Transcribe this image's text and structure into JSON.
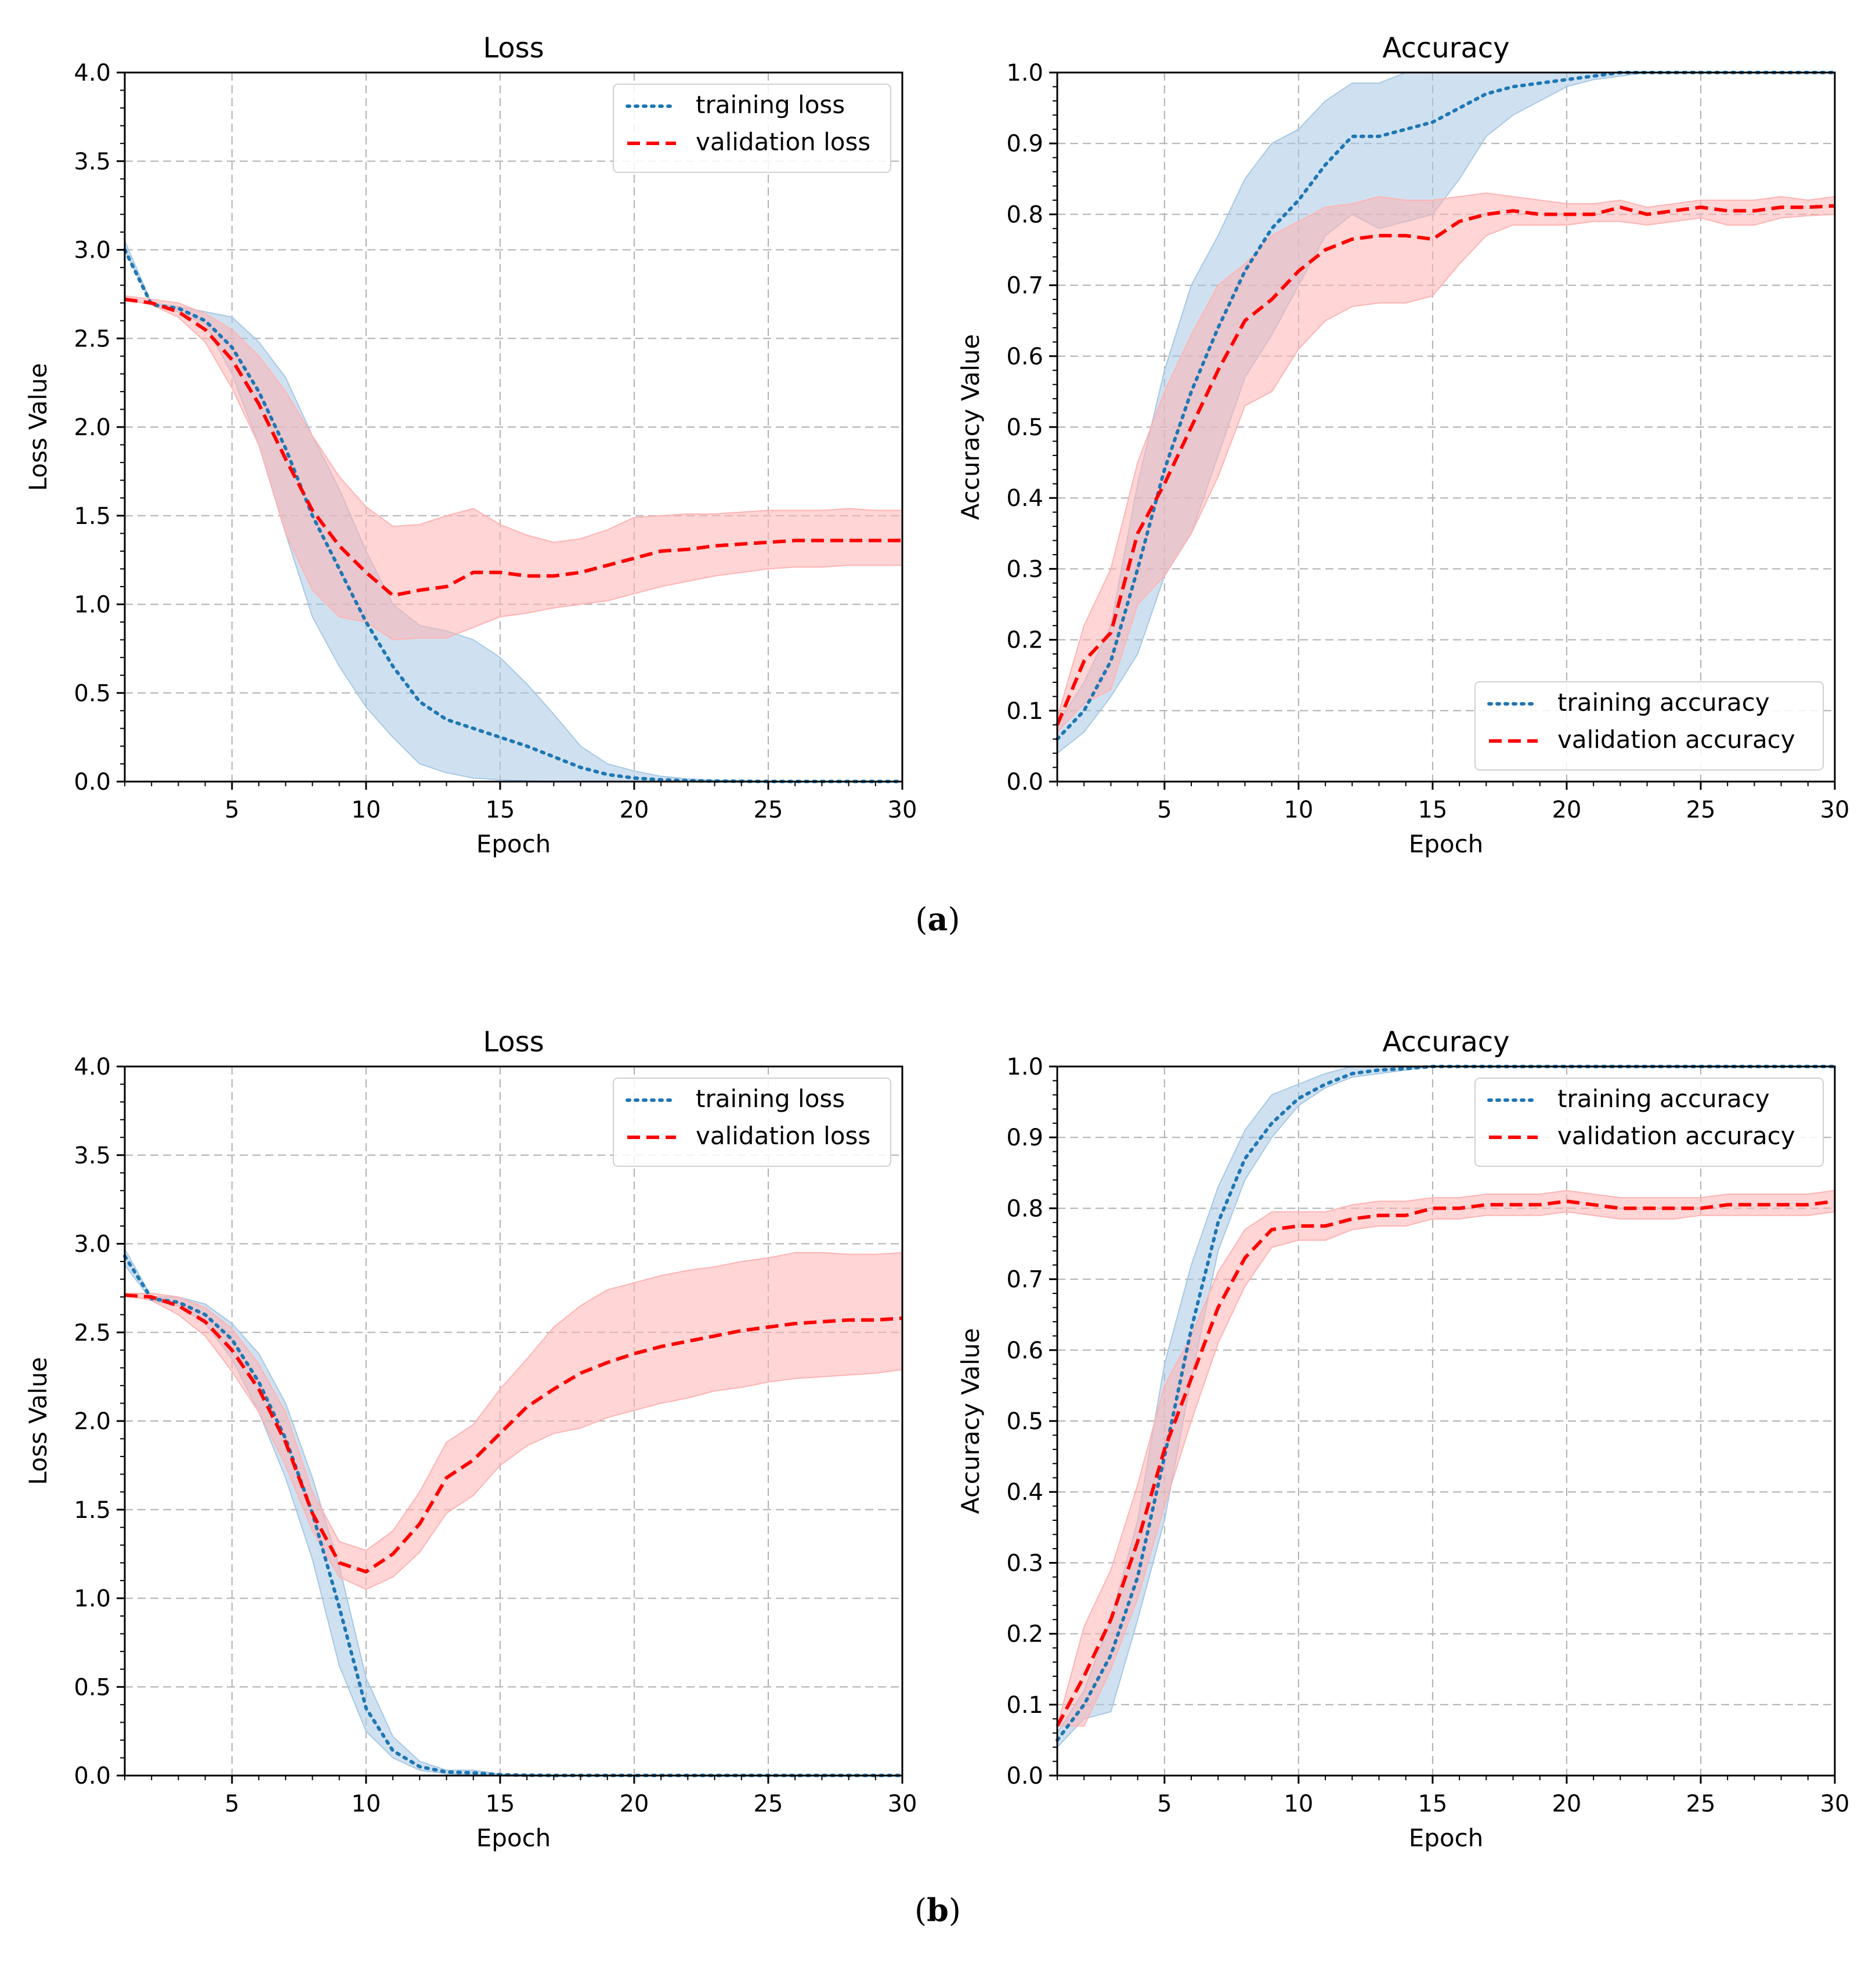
{
  "figure_labels": {
    "a": "a",
    "b": "b"
  },
  "chart_data": [
    {
      "id": "a-loss",
      "type": "line",
      "title": "Loss",
      "xlabel": "Epoch",
      "ylabel": "Loss Value",
      "xlim": [
        1,
        30
      ],
      "ylim": [
        0,
        4.0
      ],
      "xticks": [
        5,
        10,
        15,
        20,
        25,
        30
      ],
      "yticks": [
        0.0,
        0.5,
        1.0,
        1.5,
        2.0,
        2.5,
        3.0,
        3.5,
        4.0
      ],
      "ytick_labels": [
        "0.0",
        "0.5",
        "1.0",
        "1.5",
        "2.0",
        "2.5",
        "3.0",
        "3.5",
        "4.0"
      ],
      "grid": true,
      "legend_position": "upper-right",
      "x": [
        1,
        2,
        3,
        4,
        5,
        6,
        7,
        8,
        9,
        10,
        11,
        12,
        13,
        14,
        15,
        16,
        17,
        18,
        19,
        20,
        21,
        22,
        23,
        24,
        25,
        26,
        27,
        28,
        29,
        30
      ],
      "series": [
        {
          "name": "training loss",
          "style": "dotted",
          "color": "#1f77b4",
          "band_color": "#a7c8e4",
          "values": [
            3.0,
            2.69,
            2.67,
            2.6,
            2.45,
            2.2,
            1.88,
            1.5,
            1.2,
            0.9,
            0.65,
            0.45,
            0.35,
            0.3,
            0.25,
            0.2,
            0.14,
            0.08,
            0.04,
            0.02,
            0.01,
            0.005,
            0.003,
            0.002,
            0.001,
            0.001,
            0.001,
            0.001,
            0.001,
            0.001
          ],
          "lower": [
            3.0,
            2.69,
            2.65,
            2.58,
            2.3,
            1.9,
            1.4,
            0.93,
            0.65,
            0.42,
            0.25,
            0.1,
            0.05,
            0.02,
            0.01,
            0.005,
            0,
            0,
            0,
            0,
            0,
            0,
            0,
            0,
            0,
            0,
            0,
            0,
            0,
            0
          ],
          "upper": [
            3.05,
            2.7,
            2.68,
            2.65,
            2.62,
            2.48,
            2.28,
            1.95,
            1.65,
            1.3,
            1.0,
            0.88,
            0.85,
            0.8,
            0.7,
            0.55,
            0.38,
            0.2,
            0.1,
            0.06,
            0.03,
            0.015,
            0.008,
            0.004,
            0.002,
            0.001,
            0.001,
            0.001,
            0.001,
            0.001
          ]
        },
        {
          "name": "validation loss",
          "style": "dashed",
          "color": "#ff0000",
          "band_color": "#ffb3b3",
          "values": [
            2.72,
            2.7,
            2.65,
            2.55,
            2.38,
            2.13,
            1.82,
            1.53,
            1.33,
            1.18,
            1.05,
            1.08,
            1.1,
            1.18,
            1.18,
            1.16,
            1.16,
            1.18,
            1.22,
            1.26,
            1.3,
            1.31,
            1.33,
            1.34,
            1.35,
            1.36,
            1.36,
            1.36,
            1.36,
            1.36
          ],
          "lower": [
            2.72,
            2.69,
            2.62,
            2.48,
            2.22,
            1.9,
            1.4,
            1.08,
            0.93,
            0.9,
            0.8,
            0.81,
            0.81,
            0.87,
            0.93,
            0.95,
            0.98,
            1.0,
            1.02,
            1.06,
            1.1,
            1.13,
            1.16,
            1.18,
            1.2,
            1.21,
            1.21,
            1.22,
            1.22,
            1.22
          ],
          "upper": [
            2.74,
            2.72,
            2.7,
            2.64,
            2.55,
            2.4,
            2.2,
            1.95,
            1.72,
            1.55,
            1.44,
            1.45,
            1.5,
            1.54,
            1.45,
            1.39,
            1.35,
            1.37,
            1.42,
            1.49,
            1.5,
            1.51,
            1.51,
            1.52,
            1.53,
            1.53,
            1.53,
            1.54,
            1.53,
            1.53
          ]
        }
      ]
    },
    {
      "id": "a-acc",
      "type": "line",
      "title": "Accuracy",
      "xlabel": "Epoch",
      "ylabel": "Accuracy Value",
      "xlim": [
        1,
        30
      ],
      "ylim": [
        0,
        1.0
      ],
      "xticks": [
        5,
        10,
        15,
        20,
        25,
        30
      ],
      "yticks": [
        0.0,
        0.1,
        0.2,
        0.3,
        0.4,
        0.5,
        0.6,
        0.7,
        0.8,
        0.9,
        1.0
      ],
      "ytick_labels": [
        "0.0",
        "0.1",
        "0.2",
        "0.3",
        "0.4",
        "0.5",
        "0.6",
        "0.7",
        "0.8",
        "0.9",
        "1.0"
      ],
      "grid": true,
      "legend_position": "lower-right",
      "x": [
        1,
        2,
        3,
        4,
        5,
        6,
        7,
        8,
        9,
        10,
        11,
        12,
        13,
        14,
        15,
        16,
        17,
        18,
        19,
        20,
        21,
        22,
        23,
        24,
        25,
        26,
        27,
        28,
        29,
        30
      ],
      "series": [
        {
          "name": "training accuracy",
          "style": "dotted",
          "color": "#1f77b4",
          "band_color": "#a7c8e4",
          "values": [
            0.06,
            0.1,
            0.17,
            0.3,
            0.44,
            0.55,
            0.64,
            0.72,
            0.78,
            0.82,
            0.87,
            0.91,
            0.91,
            0.92,
            0.93,
            0.95,
            0.97,
            0.98,
            0.985,
            0.99,
            0.995,
            1.0,
            1.0,
            1.0,
            1.0,
            1.0,
            1.0,
            1.0,
            1.0,
            1.0
          ],
          "lower": [
            0.04,
            0.07,
            0.12,
            0.18,
            0.29,
            0.35,
            0.46,
            0.57,
            0.63,
            0.7,
            0.77,
            0.8,
            0.78,
            0.79,
            0.8,
            0.85,
            0.91,
            0.94,
            0.96,
            0.98,
            0.99,
            0.995,
            1.0,
            1.0,
            1.0,
            1.0,
            1.0,
            1.0,
            1.0,
            1.0
          ],
          "upper": [
            0.08,
            0.14,
            0.22,
            0.42,
            0.58,
            0.7,
            0.77,
            0.85,
            0.9,
            0.92,
            0.96,
            0.985,
            0.985,
            1.0,
            1.0,
            1.0,
            1.0,
            1.0,
            1.0,
            1.0,
            1.0,
            1.0,
            1.0,
            1.0,
            1.0,
            1.0,
            1.0,
            1.0,
            1.0,
            1.0
          ]
        },
        {
          "name": "validation accuracy",
          "style": "dashed",
          "color": "#ff0000",
          "band_color": "#ffb3b3",
          "values": [
            0.08,
            0.17,
            0.21,
            0.35,
            0.42,
            0.5,
            0.58,
            0.65,
            0.68,
            0.72,
            0.75,
            0.765,
            0.77,
            0.77,
            0.765,
            0.79,
            0.8,
            0.805,
            0.8,
            0.8,
            0.8,
            0.81,
            0.8,
            0.805,
            0.81,
            0.805,
            0.805,
            0.81,
            0.81,
            0.812
          ],
          "lower": [
            0.07,
            0.11,
            0.13,
            0.25,
            0.29,
            0.35,
            0.43,
            0.53,
            0.55,
            0.61,
            0.65,
            0.67,
            0.675,
            0.675,
            0.685,
            0.73,
            0.77,
            0.785,
            0.785,
            0.785,
            0.79,
            0.79,
            0.785,
            0.79,
            0.795,
            0.785,
            0.785,
            0.795,
            0.798,
            0.8
          ],
          "upper": [
            0.09,
            0.22,
            0.3,
            0.45,
            0.55,
            0.63,
            0.7,
            0.73,
            0.77,
            0.79,
            0.81,
            0.815,
            0.825,
            0.82,
            0.82,
            0.825,
            0.83,
            0.825,
            0.82,
            0.815,
            0.815,
            0.82,
            0.81,
            0.815,
            0.82,
            0.82,
            0.82,
            0.825,
            0.82,
            0.825
          ]
        }
      ]
    },
    {
      "id": "b-loss",
      "type": "line",
      "title": "Loss",
      "xlabel": "Epoch",
      "ylabel": "Loss Value",
      "xlim": [
        1,
        30
      ],
      "ylim": [
        0,
        4.0
      ],
      "xticks": [
        5,
        10,
        15,
        20,
        25,
        30
      ],
      "yticks": [
        0.0,
        0.5,
        1.0,
        1.5,
        2.0,
        2.5,
        3.0,
        3.5,
        4.0
      ],
      "ytick_labels": [
        "0.0",
        "0.5",
        "1.0",
        "1.5",
        "2.0",
        "2.5",
        "3.0",
        "3.5",
        "4.0"
      ],
      "grid": true,
      "legend_position": "upper-right",
      "x": [
        1,
        2,
        3,
        4,
        5,
        6,
        7,
        8,
        9,
        10,
        11,
        12,
        13,
        14,
        15,
        16,
        17,
        18,
        19,
        20,
        21,
        22,
        23,
        24,
        25,
        26,
        27,
        28,
        29,
        30
      ],
      "series": [
        {
          "name": "training loss",
          "style": "dotted",
          "color": "#1f77b4",
          "band_color": "#a7c8e4",
          "values": [
            2.93,
            2.69,
            2.67,
            2.6,
            2.46,
            2.22,
            1.9,
            1.48,
            0.95,
            0.38,
            0.14,
            0.05,
            0.02,
            0.015,
            0.005,
            0.002,
            0.001,
            0.001,
            0.001,
            0.001,
            0.001,
            0.001,
            0.001,
            0.001,
            0.001,
            0.001,
            0.001,
            0.001,
            0.001,
            0.001
          ],
          "lower": [
            2.88,
            2.68,
            2.65,
            2.55,
            2.35,
            2.05,
            1.68,
            1.22,
            0.62,
            0.25,
            0.1,
            0.03,
            0.01,
            0.005,
            0,
            0,
            0,
            0,
            0,
            0,
            0,
            0,
            0,
            0,
            0,
            0,
            0,
            0,
            0,
            0
          ],
          "upper": [
            2.97,
            2.7,
            2.7,
            2.66,
            2.55,
            2.38,
            2.1,
            1.68,
            1.18,
            0.55,
            0.22,
            0.08,
            0.03,
            0.03,
            0.008,
            0.004,
            0.002,
            0.001,
            0.001,
            0.001,
            0.001,
            0.001,
            0.001,
            0.001,
            0.001,
            0.001,
            0.001,
            0.001,
            0.001,
            0.001
          ]
        },
        {
          "name": "validation loss",
          "style": "dashed",
          "color": "#ff0000",
          "band_color": "#ffb3b3",
          "values": [
            2.71,
            2.7,
            2.65,
            2.56,
            2.4,
            2.18,
            1.88,
            1.48,
            1.2,
            1.15,
            1.25,
            1.42,
            1.68,
            1.78,
            1.93,
            2.08,
            2.18,
            2.27,
            2.33,
            2.38,
            2.42,
            2.45,
            2.48,
            2.51,
            2.53,
            2.55,
            2.56,
            2.57,
            2.57,
            2.58
          ],
          "lower": [
            2.71,
            2.68,
            2.6,
            2.48,
            2.28,
            2.05,
            1.75,
            1.38,
            1.12,
            1.05,
            1.12,
            1.26,
            1.48,
            1.58,
            1.75,
            1.86,
            1.93,
            1.96,
            2.02,
            2.06,
            2.1,
            2.13,
            2.17,
            2.19,
            2.22,
            2.24,
            2.25,
            2.26,
            2.27,
            2.29
          ],
          "upper": [
            2.72,
            2.72,
            2.7,
            2.64,
            2.52,
            2.32,
            2.05,
            1.6,
            1.32,
            1.27,
            1.38,
            1.6,
            1.88,
            1.98,
            2.18,
            2.35,
            2.53,
            2.65,
            2.74,
            2.78,
            2.82,
            2.85,
            2.87,
            2.9,
            2.92,
            2.95,
            2.95,
            2.94,
            2.94,
            2.95
          ]
        }
      ]
    },
    {
      "id": "b-acc",
      "type": "line",
      "title": "Accuracy",
      "xlabel": "Epoch",
      "ylabel": "Accuracy Value",
      "xlim": [
        1,
        30
      ],
      "ylim": [
        0,
        1.0
      ],
      "xticks": [
        5,
        10,
        15,
        20,
        25,
        30
      ],
      "yticks": [
        0.0,
        0.1,
        0.2,
        0.3,
        0.4,
        0.5,
        0.6,
        0.7,
        0.8,
        0.9,
        1.0
      ],
      "ytick_labels": [
        "0.0",
        "0.1",
        "0.2",
        "0.3",
        "0.4",
        "0.5",
        "0.6",
        "0.7",
        "0.8",
        "0.9",
        "1.0"
      ],
      "grid": true,
      "legend_position": "upper-right",
      "x": [
        1,
        2,
        3,
        4,
        5,
        6,
        7,
        8,
        9,
        10,
        11,
        12,
        13,
        14,
        15,
        16,
        17,
        18,
        19,
        20,
        21,
        22,
        23,
        24,
        25,
        26,
        27,
        28,
        29,
        30
      ],
      "series": [
        {
          "name": "training accuracy",
          "style": "dotted",
          "color": "#1f77b4",
          "band_color": "#a7c8e4",
          "values": [
            0.05,
            0.1,
            0.17,
            0.28,
            0.45,
            0.63,
            0.78,
            0.87,
            0.92,
            0.955,
            0.975,
            0.99,
            0.995,
            0.997,
            1.0,
            1.0,
            1.0,
            1.0,
            1.0,
            1.0,
            1.0,
            1.0,
            1.0,
            1.0,
            1.0,
            1.0,
            1.0,
            1.0,
            1.0,
            1.0
          ],
          "lower": [
            0.04,
            0.08,
            0.09,
            0.22,
            0.36,
            0.56,
            0.74,
            0.84,
            0.9,
            0.945,
            0.97,
            0.985,
            0.99,
            0.995,
            1.0,
            1.0,
            1.0,
            1.0,
            1.0,
            1.0,
            1.0,
            1.0,
            1.0,
            1.0,
            1.0,
            1.0,
            1.0,
            1.0,
            1.0,
            1.0
          ],
          "upper": [
            0.06,
            0.12,
            0.22,
            0.36,
            0.58,
            0.72,
            0.83,
            0.91,
            0.96,
            0.975,
            0.99,
            1.0,
            1.0,
            1.0,
            1.0,
            1.0,
            1.0,
            1.0,
            1.0,
            1.0,
            1.0,
            1.0,
            1.0,
            1.0,
            1.0,
            1.0,
            1.0,
            1.0,
            1.0,
            1.0
          ]
        },
        {
          "name": "validation accuracy",
          "style": "dashed",
          "color": "#ff0000",
          "band_color": "#ffb3b3",
          "values": [
            0.07,
            0.14,
            0.22,
            0.33,
            0.46,
            0.56,
            0.66,
            0.73,
            0.77,
            0.775,
            0.775,
            0.785,
            0.79,
            0.79,
            0.8,
            0.8,
            0.805,
            0.805,
            0.805,
            0.81,
            0.805,
            0.8,
            0.8,
            0.8,
            0.8,
            0.805,
            0.805,
            0.805,
            0.805,
            0.81
          ],
          "lower": [
            0.07,
            0.07,
            0.15,
            0.25,
            0.38,
            0.5,
            0.61,
            0.69,
            0.745,
            0.755,
            0.755,
            0.77,
            0.775,
            0.775,
            0.785,
            0.785,
            0.79,
            0.79,
            0.79,
            0.795,
            0.79,
            0.785,
            0.785,
            0.785,
            0.79,
            0.79,
            0.79,
            0.79,
            0.79,
            0.795
          ],
          "upper": [
            0.07,
            0.21,
            0.29,
            0.41,
            0.55,
            0.62,
            0.71,
            0.77,
            0.795,
            0.795,
            0.795,
            0.805,
            0.81,
            0.81,
            0.815,
            0.815,
            0.82,
            0.82,
            0.82,
            0.825,
            0.82,
            0.815,
            0.815,
            0.815,
            0.815,
            0.82,
            0.82,
            0.82,
            0.82,
            0.825
          ]
        }
      ]
    }
  ]
}
